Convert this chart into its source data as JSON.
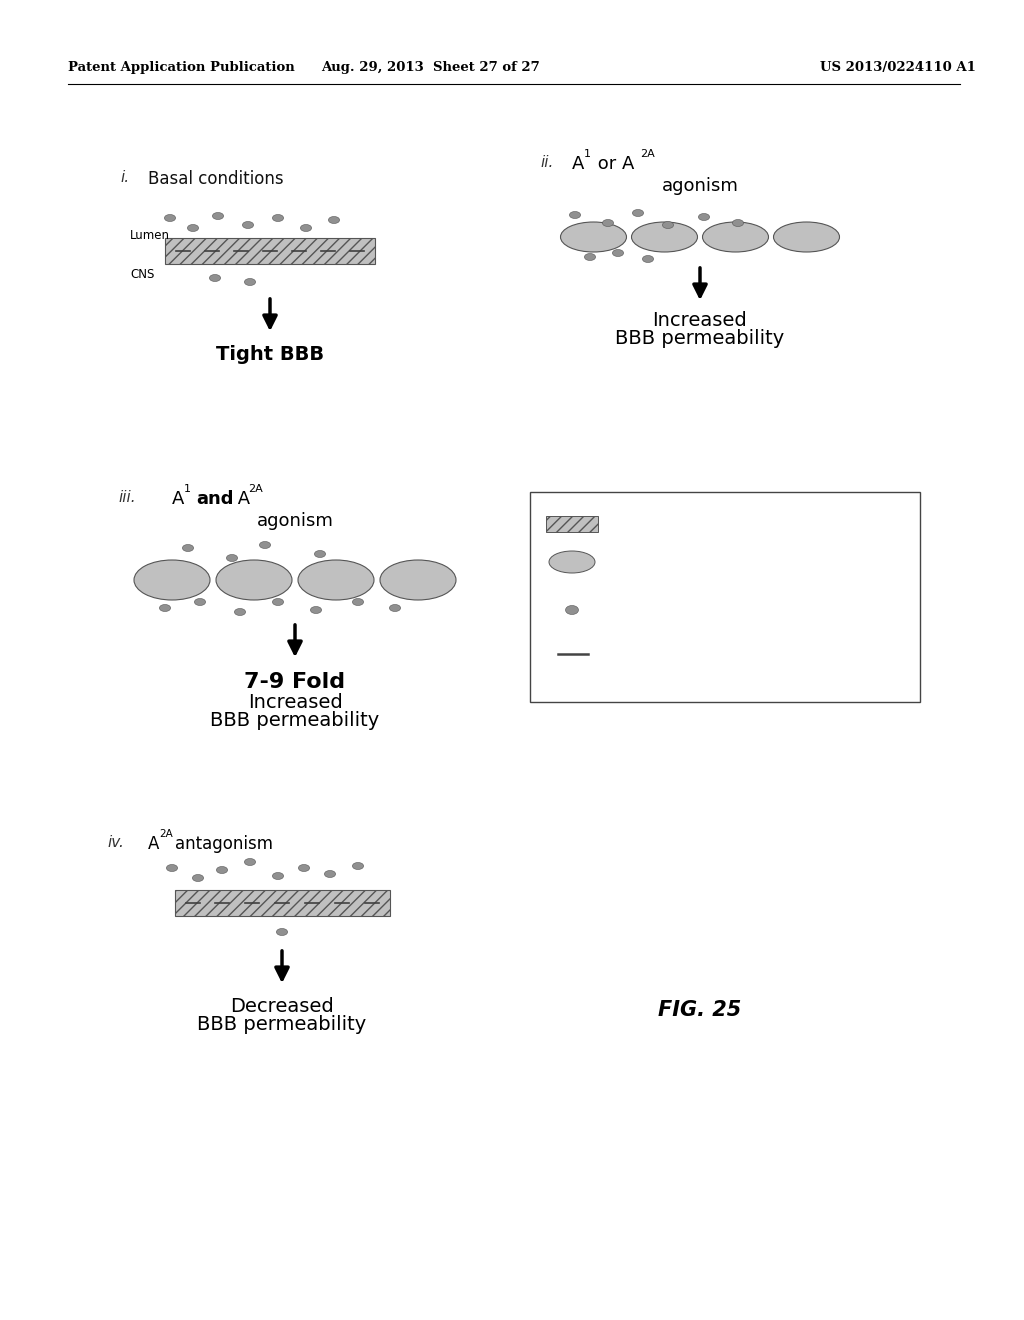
{
  "header_left": "Patent Application Publication",
  "header_mid": "Aug. 29, 2013  Sheet 27 of 27",
  "header_right": "US 2013/0224110 A1",
  "bg_color": "#ffffff",
  "fig_label": "FIG. 25",
  "cell_facecolor": "#c0c0c0",
  "molecule_color": "#909090",
  "text_color": "#111111"
}
